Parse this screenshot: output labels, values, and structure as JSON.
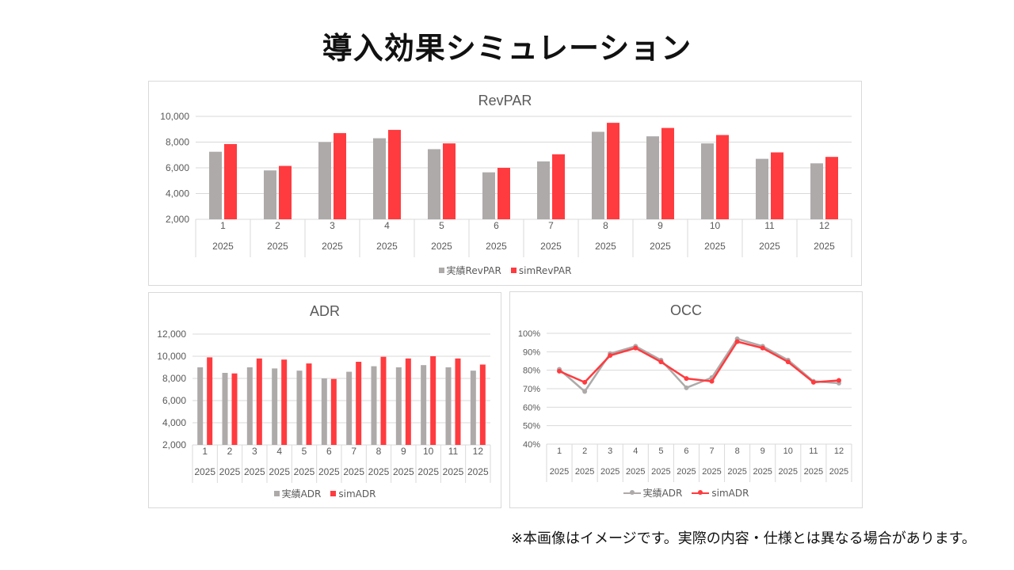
{
  "page": {
    "title": "導入効果シミュレーション",
    "note": "※本画像はイメージです。実際の内容・仕様とは異なる場合があります。"
  },
  "colors": {
    "actual": "#aeaaaa",
    "sim": "#ff3b3f",
    "grid": "#d9d9d9",
    "text": "#595959"
  },
  "chart_data": [
    {
      "type": "bar",
      "title": "RevPAR",
      "categories": [
        "1",
        "2",
        "3",
        "4",
        "5",
        "6",
        "7",
        "8",
        "9",
        "10",
        "11",
        "12"
      ],
      "category_group": "2025",
      "ylim": [
        2000,
        10000
      ],
      "yticks": [
        2000,
        4000,
        6000,
        8000,
        10000
      ],
      "ytick_labels": [
        "2,000",
        "4,000",
        "6,000",
        "8,000",
        "10,000"
      ],
      "series": [
        {
          "name": "実績RevPAR",
          "values": [
            7250,
            5800,
            8000,
            8300,
            7450,
            5650,
            6500,
            8800,
            8450,
            7900,
            6700,
            6350
          ]
        },
        {
          "name": "simRevPAR",
          "values": [
            7850,
            6150,
            8700,
            8950,
            7900,
            6000,
            7050,
            9500,
            9100,
            8550,
            7200,
            6850
          ]
        }
      ]
    },
    {
      "type": "bar",
      "title": "ADR",
      "categories": [
        "1",
        "2",
        "3",
        "4",
        "5",
        "6",
        "7",
        "8",
        "9",
        "10",
        "11",
        "12"
      ],
      "category_group": "2025",
      "ylim": [
        2000,
        12000
      ],
      "yticks": [
        2000,
        4000,
        6000,
        8000,
        10000,
        12000
      ],
      "ytick_labels": [
        "2,000",
        "4,000",
        "6,000",
        "8,000",
        "10,000",
        "12,000"
      ],
      "series": [
        {
          "name": "実績ADR",
          "values": [
            9000,
            8500,
            9000,
            8900,
            8700,
            8000,
            8600,
            9100,
            9000,
            9200,
            9000,
            8700
          ]
        },
        {
          "name": "simADR",
          "values": [
            9900,
            8450,
            9800,
            9700,
            9350,
            7950,
            9500,
            9950,
            9800,
            10000,
            9800,
            9250
          ]
        }
      ]
    },
    {
      "type": "line",
      "title": "OCC",
      "categories": [
        "1",
        "2",
        "3",
        "4",
        "5",
        "6",
        "7",
        "8",
        "9",
        "10",
        "11",
        "12"
      ],
      "category_group": "2025",
      "ylim": [
        40,
        100
      ],
      "yticks": [
        40,
        50,
        60,
        70,
        80,
        90,
        100
      ],
      "ytick_labels": [
        "40%",
        "50%",
        "60%",
        "70%",
        "80%",
        "90%",
        "100%"
      ],
      "series": [
        {
          "name": "実績ADR",
          "values": [
            80.5,
            68.5,
            89,
            93,
            85.5,
            70.5,
            76,
            97,
            93,
            85.5,
            74,
            73
          ]
        },
        {
          "name": "simADR",
          "values": [
            79.5,
            73.5,
            88,
            92,
            84.5,
            75.5,
            74,
            95.5,
            92,
            84.5,
            73.5,
            74.5
          ]
        }
      ]
    }
  ]
}
